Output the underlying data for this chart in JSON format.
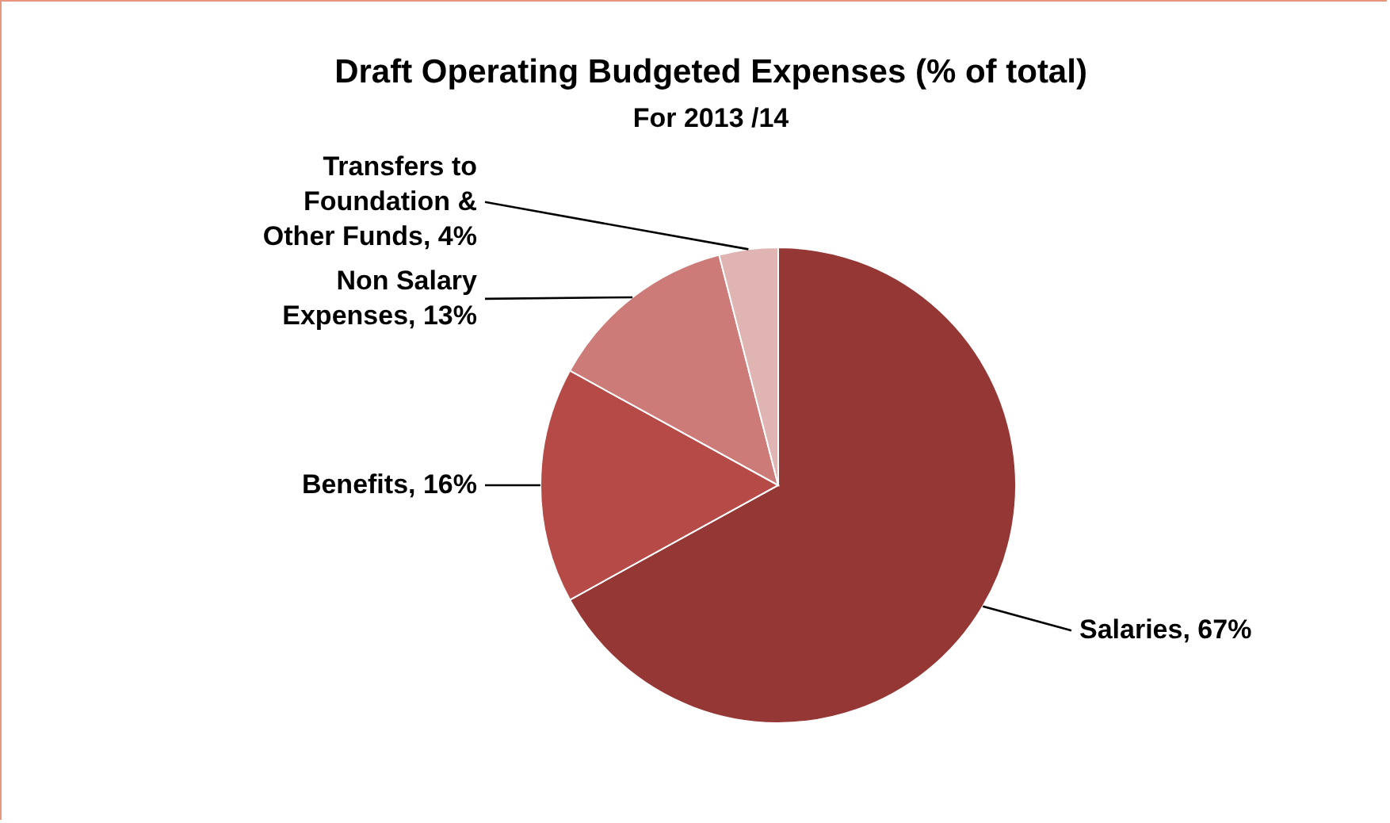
{
  "chart_data": {
    "type": "pie",
    "title": "Draft Operating Budgeted Expenses (% of total)",
    "subtitle": "For 2013 /14",
    "categories": [
      "Salaries",
      "Benefits",
      "Non Salary Expenses",
      "Transfers to Foundation & Other Funds"
    ],
    "values": [
      67,
      16,
      13,
      4
    ],
    "colors": [
      "#953735",
      "#b54a47",
      "#cd7b79",
      "#e0b4b3"
    ],
    "value_labels": [
      "67%",
      "16%",
      "13%",
      "4%"
    ]
  }
}
